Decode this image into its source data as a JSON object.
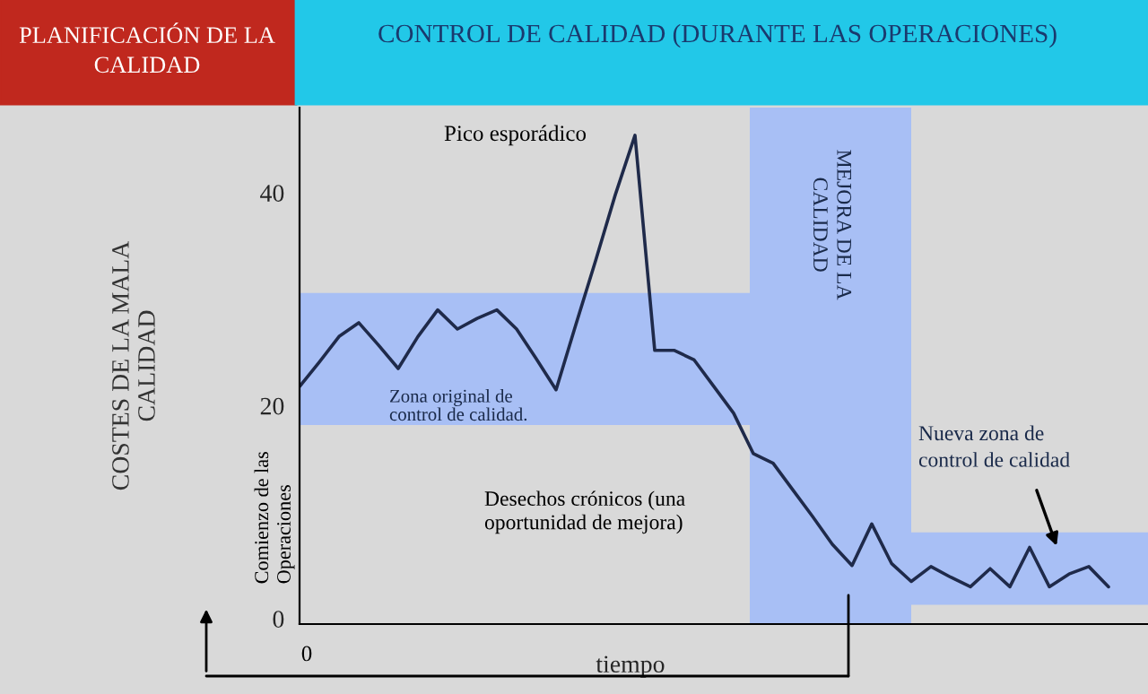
{
  "chart_data": {
    "type": "line",
    "title": "CONTROL DE CALIDAD (DURANTE LAS OPERACIONES)",
    "subtitle": "PLANIFICACIÓN DE LA CALIDAD",
    "xlabel": "tiempo",
    "ylabel": "COSTES DE LA MALA CALIDAD",
    "categories": [
      null,
      null,
      null,
      null,
      null,
      null,
      null,
      null,
      null,
      null,
      null,
      null,
      null,
      null,
      null,
      null,
      null,
      null,
      null,
      null,
      null,
      null,
      null,
      null,
      null,
      null,
      null,
      null,
      null,
      null,
      null,
      null,
      null,
      null,
      null,
      null,
      null,
      null,
      null,
      null,
      null,
      null
    ],
    "series": [
      {
        "color": "#1f2a4a",
        "values": [
          21.8,
          24.1,
          26.5,
          27.8,
          25.7,
          23.5,
          26.5,
          29.0,
          27.2,
          28.2,
          29.0,
          27.2,
          24.4,
          21.5,
          27.6,
          33.6,
          39.8,
          45.4,
          25.2,
          25.2,
          24.3,
          21.8,
          19.3,
          15.5,
          14.6,
          12.1,
          9.6,
          7.0,
          5,
          8.9,
          5.2,
          3.5,
          4.9,
          3.9,
          3,
          4.7,
          3,
          6.7,
          3,
          4.2,
          4.9,
          3
        ]
      }
    ],
    "ylim": [
      -0.5,
      48
    ],
    "yticks": [
      0,
      20,
      40
    ],
    "bands": [
      {
        "axis": "y",
        "from": 18.2,
        "to": 30.6,
        "label": "Zona original de control de calidad.",
        "color": "#a8bff5"
      },
      {
        "axis": "y",
        "from": 1.3,
        "to": 8.1,
        "label": "Nueva zona de control de calidad",
        "color": "#a8bff5"
      }
    ],
    "annotations": [
      "Pico esporádico",
      "Desechos crónicos (una oportunidad de mejora)",
      "Comienzo de las Operaciones",
      "0",
      "MEJORA DE LA CALIDAD"
    ],
    "grid": false,
    "legend": false,
    "marker": "none",
    "line_style": "solid"
  }
}
